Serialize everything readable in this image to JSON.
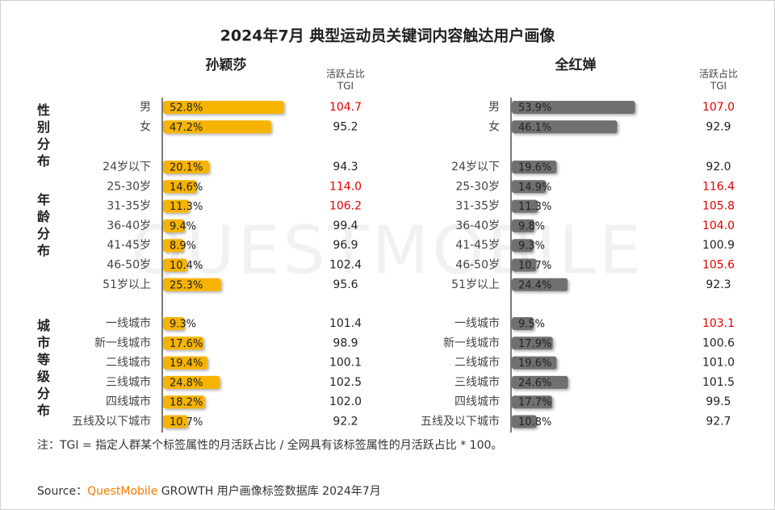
{
  "title": "2024年7月 典型运动员关键词内容触达用户画像",
  "group_labels": [
    "性别分布",
    "年龄分布",
    "城市等级分布"
  ],
  "watermark": "QUESTMOBILE",
  "note": "注：TGI = 指定人群某个标签属性的月活跃占比 / 全网具有该标签属性的月活跃占比 * 100。",
  "source": {
    "prefix": "Source：",
    "brand": "QuestMobile",
    "rest": "GROWTH 用户画像标签数据库 2024年7月"
  },
  "chart_data": [
    {
      "type": "bar",
      "orientation": "horizontal",
      "title": "孙颖莎",
      "tgi_header": [
        "活跃占比",
        "TGI"
      ],
      "color": "#f6b300",
      "xlim": [
        0,
        60
      ],
      "groups": [
        {
          "categories": [
            "男",
            "女"
          ],
          "values": [
            52.8,
            47.2
          ],
          "value_labels": [
            "52.8%",
            "47.2%"
          ],
          "tgi": [
            104.7,
            95.2
          ],
          "tgi_labels": [
            "104.7",
            "95.2"
          ],
          "tgi_colors": [
            "#e00000",
            "#222222"
          ]
        },
        {
          "categories": [
            "24岁以下",
            "25-30岁",
            "31-35岁",
            "36-40岁",
            "41-45岁",
            "46-50岁",
            "51岁以上"
          ],
          "values": [
            20.1,
            14.6,
            11.3,
            9.4,
            8.9,
            10.4,
            25.3
          ],
          "value_labels": [
            "20.1%",
            "14.6%",
            "11.3%",
            "9.4%",
            "8.9%",
            "10.4%",
            "25.3%"
          ],
          "tgi": [
            94.3,
            114.0,
            106.2,
            99.4,
            96.9,
            102.4,
            95.6
          ],
          "tgi_labels": [
            "94.3",
            "114.0",
            "106.2",
            "99.4",
            "96.9",
            "102.4",
            "95.6"
          ],
          "tgi_colors": [
            "#222222",
            "#e00000",
            "#e00000",
            "#222222",
            "#222222",
            "#222222",
            "#222222"
          ]
        },
        {
          "categories": [
            "一线城市",
            "新一线城市",
            "二线城市",
            "三线城市",
            "四线城市",
            "五线及以下城市"
          ],
          "values": [
            9.3,
            17.6,
            19.4,
            24.8,
            18.2,
            10.7
          ],
          "value_labels": [
            "9.3%",
            "17.6%",
            "19.4%",
            "24.8%",
            "18.2%",
            "10.7%"
          ],
          "tgi": [
            101.4,
            98.9,
            100.1,
            102.5,
            102.0,
            92.2
          ],
          "tgi_labels": [
            "101.4",
            "98.9",
            "100.1",
            "102.5",
            "102.0",
            "92.2"
          ],
          "tgi_colors": [
            "#222222",
            "#222222",
            "#222222",
            "#222222",
            "#222222",
            "#222222"
          ]
        }
      ]
    },
    {
      "type": "bar",
      "orientation": "horizontal",
      "title": "全红婵",
      "tgi_header": [
        "活跃占比",
        "TGI"
      ],
      "color": "#6f6f6f",
      "xlim": [
        0,
        60
      ],
      "groups": [
        {
          "categories": [
            "男",
            "女"
          ],
          "values": [
            53.9,
            46.1
          ],
          "value_labels": [
            "53.9%",
            "46.1%"
          ],
          "tgi": [
            107.0,
            92.9
          ],
          "tgi_labels": [
            "107.0",
            "92.9"
          ],
          "tgi_colors": [
            "#e00000",
            "#222222"
          ]
        },
        {
          "categories": [
            "24岁以下",
            "25-30岁",
            "31-35岁",
            "36-40岁",
            "41-45岁",
            "46-50岁",
            "51岁以上"
          ],
          "values": [
            19.6,
            14.9,
            11.3,
            9.8,
            9.3,
            10.7,
            24.4
          ],
          "value_labels": [
            "19.6%",
            "14.9%",
            "11.3%",
            "9.8%",
            "9.3%",
            "10.7%",
            "24.4%"
          ],
          "tgi": [
            92.0,
            116.4,
            105.8,
            104.0,
            100.9,
            105.6,
            92.3
          ],
          "tgi_labels": [
            "92.0",
            "116.4",
            "105.8",
            "104.0",
            "100.9",
            "105.6",
            "92.3"
          ],
          "tgi_colors": [
            "#222222",
            "#e00000",
            "#e00000",
            "#e00000",
            "#222222",
            "#e00000",
            "#222222"
          ]
        },
        {
          "categories": [
            "一线城市",
            "新一线城市",
            "二线城市",
            "三线城市",
            "四线城市",
            "五线及以下城市"
          ],
          "values": [
            9.5,
            17.9,
            19.6,
            24.6,
            17.7,
            10.8
          ],
          "value_labels": [
            "9.5%",
            "17.9%",
            "19.6%",
            "24.6%",
            "17.7%",
            "10.8%"
          ],
          "tgi": [
            103.1,
            100.6,
            101.0,
            101.5,
            99.5,
            92.7
          ],
          "tgi_labels": [
            "103.1",
            "100.6",
            "101.0",
            "101.5",
            "99.5",
            "92.7"
          ],
          "tgi_colors": [
            "#e00000",
            "#222222",
            "#222222",
            "#222222",
            "#222222",
            "#222222"
          ]
        }
      ]
    }
  ]
}
